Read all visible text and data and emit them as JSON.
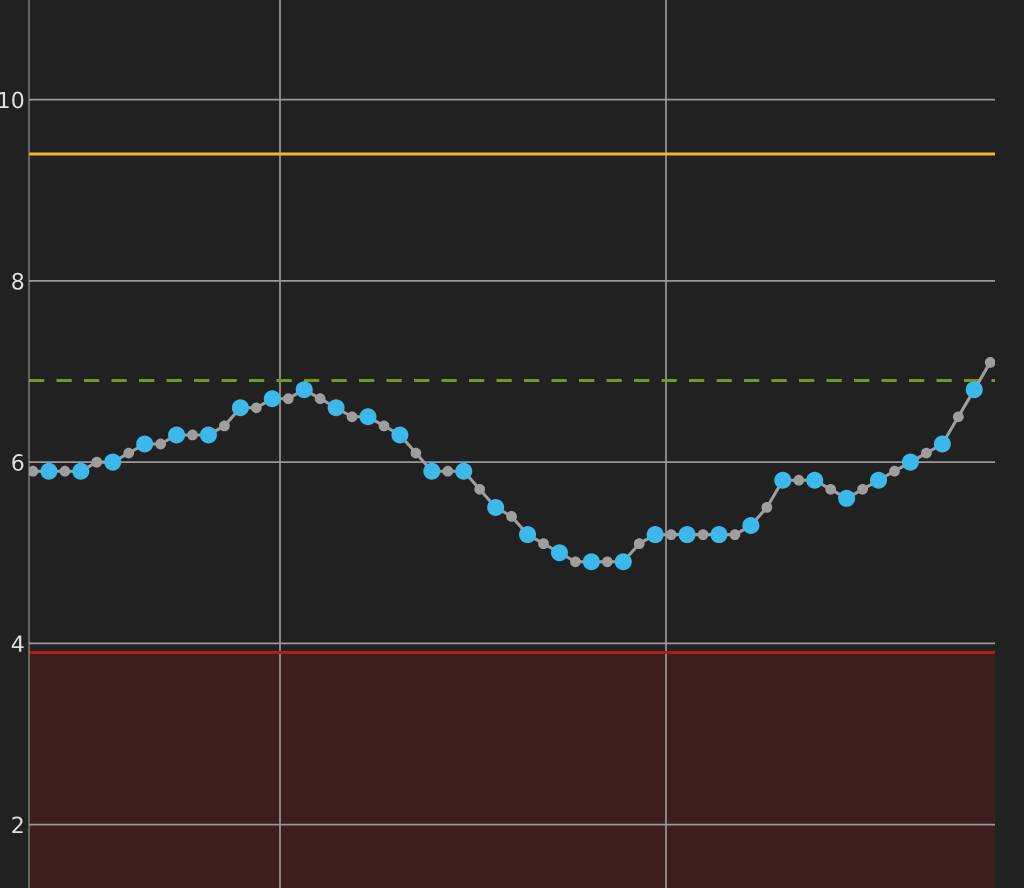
{
  "chart_data": {
    "type": "line",
    "categories": [
      null,
      null,
      null,
      null,
      null,
      null,
      null,
      null,
      null,
      null,
      null,
      null,
      null,
      null,
      null,
      null,
      null,
      null,
      null,
      null,
      null,
      null,
      null,
      null,
      null,
      null,
      null,
      null,
      null,
      null,
      null,
      null,
      null,
      null,
      null,
      null,
      null,
      null,
      null,
      null,
      null,
      null,
      null,
      null,
      null,
      null,
      null,
      null,
      null,
      null,
      null,
      null,
      null,
      null,
      null,
      null,
      null,
      null,
      null,
      null,
      null
    ],
    "series": [
      {
        "color": "#9e9e9e",
        "marker": "circle",
        "values": [
          5.9,
          5.9,
          5.9,
          5.9,
          6.0,
          6.0,
          6.1,
          6.2,
          6.2,
          6.3,
          6.3,
          6.3,
          6.4,
          6.6,
          6.6,
          6.7,
          6.7,
          6.8,
          6.7,
          6.6,
          6.5,
          6.5,
          6.4,
          6.3,
          6.1,
          5.9,
          5.9,
          5.9,
          5.7,
          5.5,
          5.4,
          5.2,
          5.1,
          5.0,
          4.9,
          4.9,
          4.9,
          4.9,
          5.1,
          5.2,
          5.2,
          5.2,
          5.2,
          5.2,
          5.2,
          5.3,
          5.5,
          5.8,
          5.8,
          5.8,
          5.7,
          5.6,
          5.7,
          5.8,
          5.9,
          6.0,
          6.1,
          6.2,
          6.5,
          6.8,
          7.1
        ],
        "colors": [
          "#9e9e9e",
          "#3db8ea",
          "#9e9e9e",
          "#3db8ea",
          "#9e9e9e",
          "#3db8ea",
          "#9e9e9e",
          "#3db8ea",
          "#9e9e9e",
          "#3db8ea",
          "#9e9e9e",
          "#3db8ea",
          "#9e9e9e",
          "#3db8ea",
          "#9e9e9e",
          "#3db8ea",
          "#9e9e9e",
          "#3db8ea",
          "#9e9e9e",
          "#3db8ea",
          "#9e9e9e",
          "#3db8ea",
          "#9e9e9e",
          "#3db8ea",
          "#9e9e9e",
          "#3db8ea",
          "#9e9e9e",
          "#3db8ea",
          "#9e9e9e",
          "#3db8ea",
          "#9e9e9e",
          "#3db8ea",
          "#9e9e9e",
          "#3db8ea",
          "#9e9e9e",
          "#3db8ea",
          "#9e9e9e",
          "#3db8ea",
          "#9e9e9e",
          "#3db8ea",
          "#9e9e9e",
          "#3db8ea",
          "#9e9e9e",
          "#3db8ea",
          "#9e9e9e",
          "#3db8ea",
          "#9e9e9e",
          "#3db8ea",
          "#9e9e9e",
          "#3db8ea",
          "#9e9e9e",
          "#3db8ea",
          "#9e9e9e",
          "#3db8ea",
          "#9e9e9e",
          "#3db8ea",
          "#9e9e9e",
          "#3db8ea",
          "#9e9e9e",
          "#3db8ea",
          "#9e9e9e"
        ]
      }
    ],
    "ylim": [
      1.3,
      11.1
    ],
    "yticks": [
      2,
      4,
      6,
      8,
      10
    ],
    "tick_labels": "y",
    "grid": "y",
    "ref_lines": [
      {
        "axis": "y",
        "value": 9.4,
        "color": "#f2b431",
        "line_style": "solid"
      },
      {
        "axis": "y",
        "value": 6.9,
        "color": "#6f9a1c",
        "line_style": "dashed"
      },
      {
        "axis": "y",
        "value": 3.9,
        "color": "#b01c1c",
        "line_style": "solid"
      }
    ],
    "bands": [
      {
        "axis": "y",
        "from": 1.3,
        "to": 3.9,
        "color": "#3d1e1f"
      }
    ]
  }
}
